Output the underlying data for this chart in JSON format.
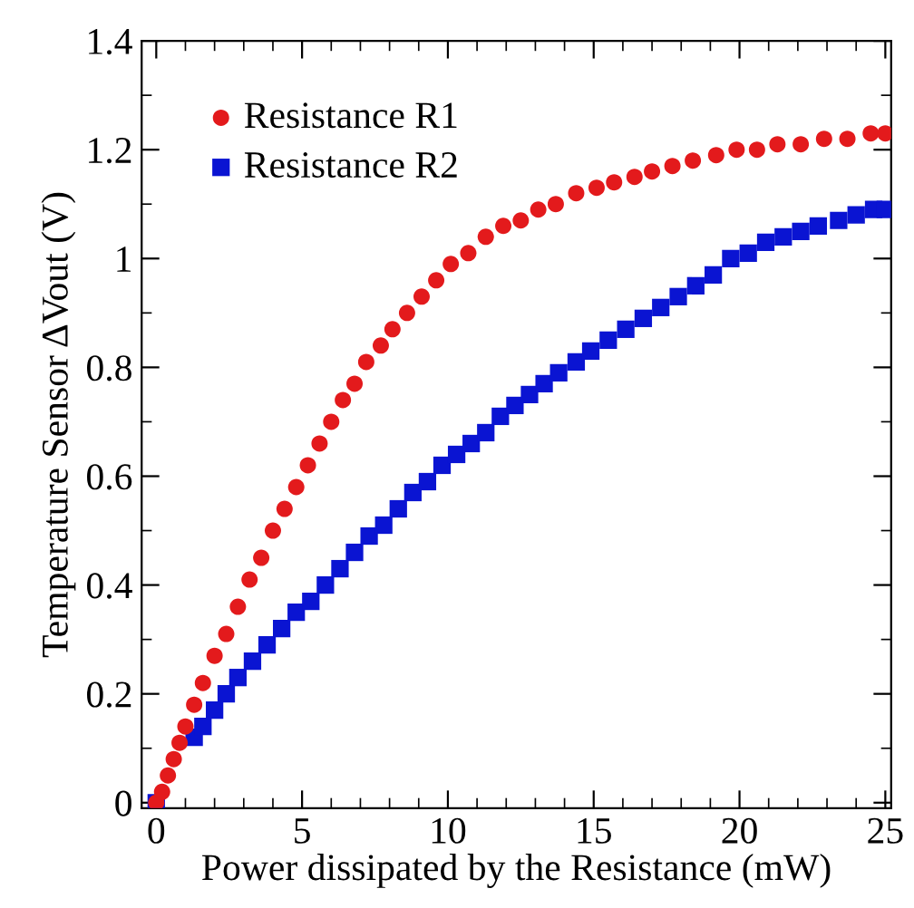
{
  "chart_data": {
    "type": "scatter",
    "xlabel": "Power dissipated by the Resistance (mW)",
    "ylabel": "Temperature Sensor ΔVout (V)",
    "xlim": [
      -0.5,
      25.2
    ],
    "ylim": [
      -0.01,
      1.4
    ],
    "xticks": [
      0,
      5,
      10,
      15,
      20,
      25
    ],
    "yticks": [
      0,
      0.2,
      0.4,
      0.6,
      0.8,
      1,
      1.2,
      1.4
    ],
    "grid": false,
    "legend": "top left",
    "series": [
      {
        "name": "Resistance R1",
        "color": "#e31a1c",
        "marker": "circle",
        "x": [
          0,
          0.2,
          0.4,
          0.6,
          0.8,
          1.0,
          1.3,
          1.6,
          2.0,
          2.4,
          2.8,
          3.2,
          3.6,
          4.0,
          4.4,
          4.8,
          5.2,
          5.6,
          6.0,
          6.4,
          6.8,
          7.2,
          7.7,
          8.1,
          8.6,
          9.1,
          9.6,
          10.1,
          10.7,
          11.3,
          11.9,
          12.5,
          13.1,
          13.7,
          14.4,
          15.1,
          15.7,
          16.4,
          17.0,
          17.7,
          18.4,
          19.2,
          19.9,
          20.6,
          21.3,
          22.1,
          22.9,
          23.7,
          24.5,
          25.0
        ],
        "values": [
          0,
          0.02,
          0.05,
          0.08,
          0.11,
          0.14,
          0.18,
          0.22,
          0.27,
          0.31,
          0.36,
          0.41,
          0.45,
          0.5,
          0.54,
          0.58,
          0.62,
          0.66,
          0.7,
          0.74,
          0.77,
          0.81,
          0.84,
          0.87,
          0.9,
          0.93,
          0.96,
          0.99,
          1.01,
          1.04,
          1.06,
          1.07,
          1.09,
          1.1,
          1.12,
          1.13,
          1.14,
          1.15,
          1.16,
          1.17,
          1.18,
          1.19,
          1.2,
          1.2,
          1.21,
          1.21,
          1.22,
          1.22,
          1.23,
          1.23
        ]
      },
      {
        "name": "Resistance R2",
        "color": "#0a14d2",
        "marker": "square",
        "x": [
          0,
          0.2,
          0.4,
          0.6,
          0.8,
          1.0,
          1.3,
          1.6,
          2.0,
          2.4,
          2.8,
          3.3,
          3.8,
          4.3,
          4.8,
          5.3,
          5.8,
          6.3,
          6.8,
          7.3,
          7.8,
          8.3,
          8.8,
          9.3,
          9.8,
          10.3,
          10.8,
          11.3,
          11.8,
          12.3,
          12.8,
          13.3,
          13.8,
          14.4,
          14.9,
          15.5,
          16.1,
          16.7,
          17.3,
          17.9,
          18.5,
          19.1,
          19.7,
          20.3,
          20.9,
          21.5,
          22.1,
          22.7,
          23.4,
          24.0,
          24.6,
          25.0
        ],
        "values": [
          0,
          null,
          null,
          null,
          null,
          null,
          0.12,
          0.14,
          0.17,
          0.2,
          0.23,
          0.26,
          0.29,
          0.32,
          0.35,
          0.37,
          0.4,
          0.43,
          0.46,
          0.49,
          0.51,
          0.54,
          0.57,
          0.59,
          0.62,
          0.64,
          0.66,
          0.68,
          0.71,
          0.73,
          0.75,
          0.77,
          0.79,
          0.81,
          0.83,
          0.85,
          0.87,
          0.89,
          0.91,
          0.93,
          0.95,
          0.97,
          1.0,
          1.01,
          1.03,
          1.04,
          1.05,
          1.06,
          1.07,
          1.08,
          1.09,
          1.09
        ]
      }
    ]
  }
}
